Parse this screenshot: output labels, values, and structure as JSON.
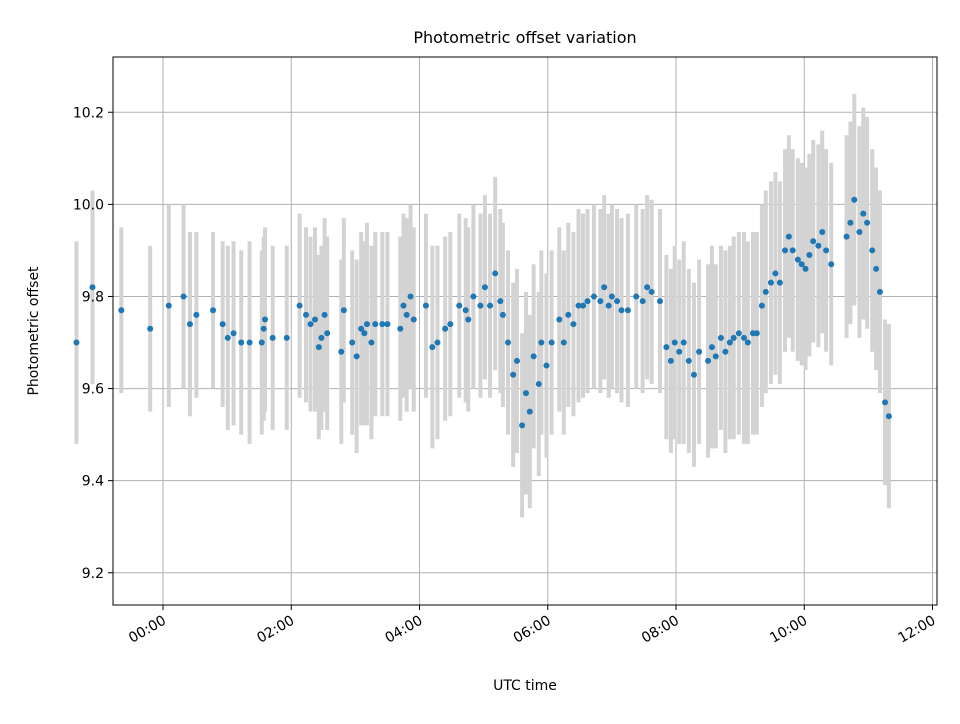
{
  "colors": {
    "point": "#1f77b4",
    "errorbar": "#d3d3d3",
    "grid": "#b0b0b0",
    "axes": "#000000"
  },
  "chart_data": {
    "type": "scatter",
    "title": "Photometric offset variation",
    "xlabel": "UTC time",
    "ylabel": "Photometric offset",
    "x_unit": "hours",
    "xlim": [
      -0.78,
      12.07
    ],
    "ylim": [
      9.13,
      10.32
    ],
    "grid": true,
    "legend": "none",
    "x_ticks": [
      {
        "value": 0,
        "label": "00:00"
      },
      {
        "value": 2,
        "label": "02:00"
      },
      {
        "value": 4,
        "label": "04:00"
      },
      {
        "value": 6,
        "label": "06:00"
      },
      {
        "value": 8,
        "label": "08:00"
      },
      {
        "value": 10,
        "label": "10:00"
      },
      {
        "value": 12,
        "label": "12:00"
      }
    ],
    "y_ticks": [
      {
        "value": 9.2,
        "label": "9.2"
      },
      {
        "value": 9.4,
        "label": "9.4"
      },
      {
        "value": 9.6,
        "label": "9.6"
      },
      {
        "value": 9.8,
        "label": "9.8"
      },
      {
        "value": 10.0,
        "label": "10.0"
      },
      {
        "value": 10.2,
        "label": "10.2"
      }
    ],
    "series": [
      {
        "marker": "dot",
        "error_bars": "vertical",
        "points": [
          [
            -1.35,
            9.7,
            0.22
          ],
          [
            -1.1,
            9.82,
            0.21
          ],
          [
            -0.65,
            9.77,
            0.18
          ],
          [
            -0.2,
            9.73,
            0.18
          ],
          [
            0.09,
            9.78,
            0.22
          ],
          [
            0.32,
            9.8,
            0.2
          ],
          [
            0.42,
            9.74,
            0.2
          ],
          [
            0.52,
            9.76,
            0.18
          ],
          [
            0.78,
            9.77,
            0.17
          ],
          [
            0.93,
            9.74,
            0.18
          ],
          [
            1.01,
            9.71,
            0.2
          ],
          [
            1.1,
            9.72,
            0.2
          ],
          [
            1.22,
            9.7,
            0.2
          ],
          [
            1.35,
            9.7,
            0.22
          ],
          [
            1.54,
            9.7,
            0.2
          ],
          [
            1.57,
            9.73,
            0.2
          ],
          [
            1.59,
            9.75,
            0.2
          ],
          [
            1.71,
            9.71,
            0.2
          ],
          [
            1.93,
            9.71,
            0.2
          ],
          [
            2.13,
            9.78,
            0.2
          ],
          [
            2.23,
            9.76,
            0.19
          ],
          [
            2.3,
            9.74,
            0.19
          ],
          [
            2.37,
            9.75,
            0.2
          ],
          [
            2.43,
            9.69,
            0.2
          ],
          [
            2.47,
            9.71,
            0.2
          ],
          [
            2.52,
            9.76,
            0.21
          ],
          [
            2.56,
            9.72,
            0.21
          ],
          [
            2.78,
            9.68,
            0.2
          ],
          [
            2.82,
            9.77,
            0.2
          ],
          [
            2.95,
            9.7,
            0.2
          ],
          [
            3.02,
            9.67,
            0.21
          ],
          [
            3.09,
            9.73,
            0.21
          ],
          [
            3.14,
            9.72,
            0.2
          ],
          [
            3.18,
            9.74,
            0.22
          ],
          [
            3.25,
            9.7,
            0.21
          ],
          [
            3.31,
            9.74,
            0.2
          ],
          [
            3.42,
            9.74,
            0.2
          ],
          [
            3.5,
            9.74,
            0.2
          ],
          [
            3.7,
            9.73,
            0.2
          ],
          [
            3.75,
            9.78,
            0.2
          ],
          [
            3.8,
            9.76,
            0.21
          ],
          [
            3.86,
            9.8,
            0.2
          ],
          [
            3.91,
            9.75,
            0.2
          ],
          [
            4.1,
            9.78,
            0.2
          ],
          [
            4.2,
            9.69,
            0.22
          ],
          [
            4.28,
            9.7,
            0.21
          ],
          [
            4.4,
            9.73,
            0.2
          ],
          [
            4.48,
            9.74,
            0.2
          ],
          [
            4.62,
            9.78,
            0.2
          ],
          [
            4.72,
            9.77,
            0.2
          ],
          [
            4.76,
            9.75,
            0.2
          ],
          [
            4.84,
            9.8,
            0.2
          ],
          [
            4.95,
            9.78,
            0.2
          ],
          [
            5.02,
            9.82,
            0.2
          ],
          [
            5.1,
            9.78,
            0.2
          ],
          [
            5.18,
            9.85,
            0.21
          ],
          [
            5.26,
            9.79,
            0.2
          ],
          [
            5.3,
            9.76,
            0.2
          ],
          [
            5.38,
            9.7,
            0.2
          ],
          [
            5.46,
            9.63,
            0.2
          ],
          [
            5.52,
            9.66,
            0.2
          ],
          [
            5.6,
            9.52,
            0.2
          ],
          [
            5.66,
            9.59,
            0.22
          ],
          [
            5.72,
            9.55,
            0.21
          ],
          [
            5.78,
            9.67,
            0.2
          ],
          [
            5.86,
            9.61,
            0.2
          ],
          [
            5.9,
            9.7,
            0.2
          ],
          [
            5.98,
            9.65,
            0.2
          ],
          [
            6.06,
            9.7,
            0.2
          ],
          [
            6.18,
            9.75,
            0.2
          ],
          [
            6.25,
            9.7,
            0.2
          ],
          [
            6.32,
            9.76,
            0.2
          ],
          [
            6.4,
            9.74,
            0.2
          ],
          [
            6.48,
            9.78,
            0.21
          ],
          [
            6.55,
            9.78,
            0.2
          ],
          [
            6.62,
            9.79,
            0.2
          ],
          [
            6.72,
            9.8,
            0.2
          ],
          [
            6.82,
            9.79,
            0.2
          ],
          [
            6.88,
            9.82,
            0.2
          ],
          [
            6.95,
            9.78,
            0.2
          ],
          [
            7.0,
            9.8,
            0.2
          ],
          [
            7.08,
            9.79,
            0.2
          ],
          [
            7.15,
            9.77,
            0.2
          ],
          [
            7.25,
            9.77,
            0.21
          ],
          [
            7.38,
            9.8,
            0.2
          ],
          [
            7.48,
            9.79,
            0.2
          ],
          [
            7.55,
            9.82,
            0.2
          ],
          [
            7.62,
            9.81,
            0.2
          ],
          [
            7.75,
            9.79,
            0.2
          ],
          [
            7.85,
            9.69,
            0.2
          ],
          [
            7.92,
            9.66,
            0.2
          ],
          [
            7.98,
            9.7,
            0.21
          ],
          [
            8.05,
            9.68,
            0.2
          ],
          [
            8.12,
            9.7,
            0.22
          ],
          [
            8.2,
            9.66,
            0.2
          ],
          [
            8.28,
            9.63,
            0.2
          ],
          [
            8.36,
            9.68,
            0.2
          ],
          [
            8.5,
            9.66,
            0.21
          ],
          [
            8.56,
            9.69,
            0.22
          ],
          [
            8.62,
            9.67,
            0.2
          ],
          [
            8.7,
            9.71,
            0.2
          ],
          [
            8.77,
            9.68,
            0.22
          ],
          [
            8.84,
            9.7,
            0.21
          ],
          [
            8.9,
            9.71,
            0.22
          ],
          [
            8.98,
            9.72,
            0.22
          ],
          [
            9.06,
            9.71,
            0.23
          ],
          [
            9.12,
            9.7,
            0.22
          ],
          [
            9.2,
            9.72,
            0.22
          ],
          [
            9.26,
            9.72,
            0.22
          ],
          [
            9.34,
            9.78,
            0.22
          ],
          [
            9.4,
            9.81,
            0.22
          ],
          [
            9.48,
            9.83,
            0.22
          ],
          [
            9.55,
            9.85,
            0.22
          ],
          [
            9.62,
            9.83,
            0.22
          ],
          [
            9.7,
            9.9,
            0.22
          ],
          [
            9.76,
            9.93,
            0.22
          ],
          [
            9.82,
            9.9,
            0.22
          ],
          [
            9.9,
            9.88,
            0.22
          ],
          [
            9.96,
            9.87,
            0.22
          ],
          [
            10.02,
            9.86,
            0.22
          ],
          [
            10.08,
            9.89,
            0.22
          ],
          [
            10.14,
            9.92,
            0.22
          ],
          [
            10.22,
            9.91,
            0.22
          ],
          [
            10.28,
            9.94,
            0.22
          ],
          [
            10.34,
            9.9,
            0.22
          ],
          [
            10.42,
            9.87,
            0.22
          ],
          [
            10.66,
            9.93,
            0.22
          ],
          [
            10.72,
            9.96,
            0.22
          ],
          [
            10.78,
            10.01,
            0.23
          ],
          [
            10.86,
            9.94,
            0.23
          ],
          [
            10.92,
            9.98,
            0.23
          ],
          [
            10.98,
            9.96,
            0.23
          ],
          [
            11.06,
            9.9,
            0.22
          ],
          [
            11.12,
            9.86,
            0.22
          ],
          [
            11.18,
            9.81,
            0.22
          ],
          [
            11.26,
            9.57,
            0.18
          ],
          [
            11.32,
            9.54,
            0.2
          ]
        ]
      }
    ]
  }
}
